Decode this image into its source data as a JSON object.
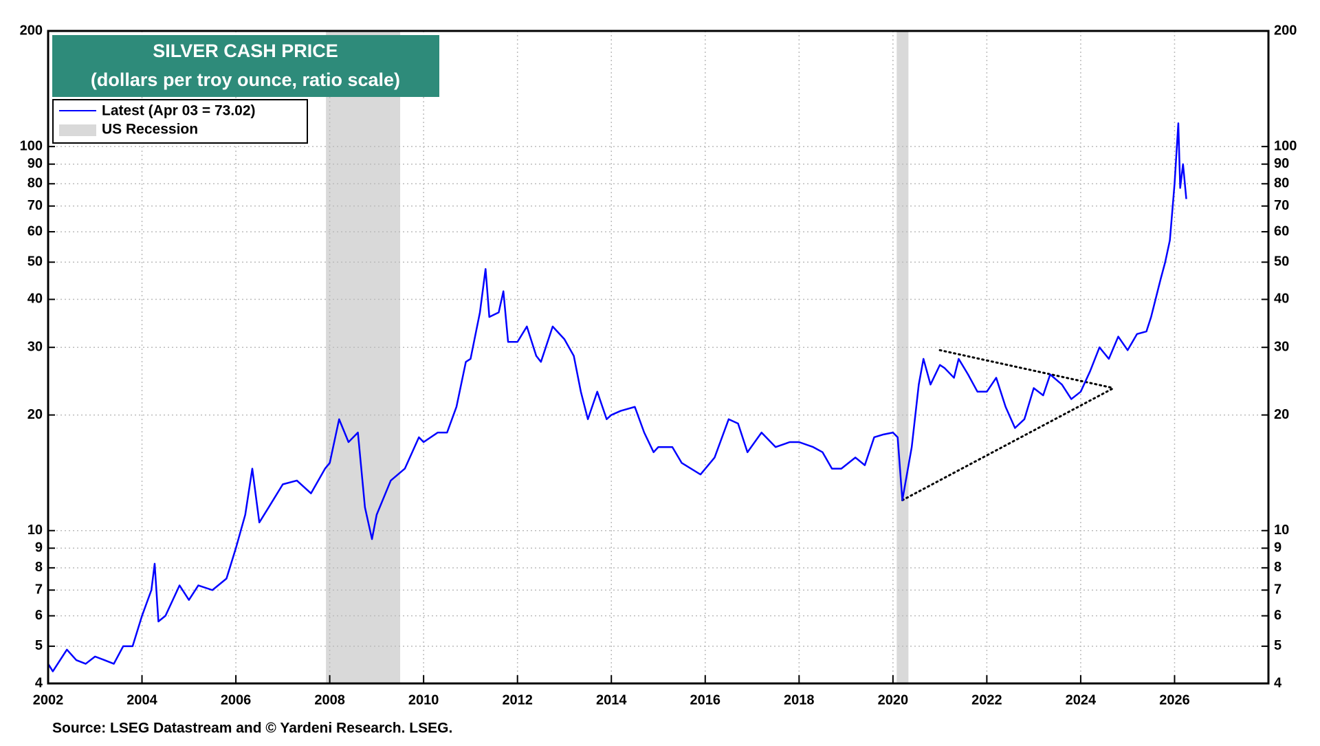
{
  "chart_data": {
    "type": "line",
    "title": "SILVER CASH PRICE",
    "subtitle": "(dollars per troy ounce, ratio scale)",
    "source": "Source: LSEG Datastream and © Yardeni Research. LSEG.",
    "log_scale": true,
    "grid": true,
    "legend_position": "upper-left",
    "xlim": [
      2002,
      2028
    ],
    "xticks": [
      2002,
      2004,
      2006,
      2008,
      2010,
      2012,
      2014,
      2016,
      2018,
      2020,
      2022,
      2024,
      2026
    ],
    "ylim": [
      4,
      200
    ],
    "yticks": [
      4,
      5,
      6,
      7,
      8,
      9,
      10,
      20,
      30,
      40,
      50,
      60,
      70,
      80,
      90,
      100,
      200
    ],
    "x": [
      2002.0,
      2002.1,
      2002.4,
      2002.6,
      2002.8,
      2003.0,
      2003.2,
      2003.4,
      2003.6,
      2003.8,
      2004.0,
      2004.2,
      2004.27,
      2004.35,
      2004.5,
      2004.8,
      2005.0,
      2005.2,
      2005.5,
      2005.8,
      2006.0,
      2006.2,
      2006.35,
      2006.5,
      2006.7,
      2007.0,
      2007.3,
      2007.6,
      2007.9,
      2008.0,
      2008.2,
      2008.4,
      2008.6,
      2008.75,
      2008.9,
      2009.0,
      2009.3,
      2009.6,
      2009.9,
      2010.0,
      2010.3,
      2010.5,
      2010.7,
      2010.9,
      2011.0,
      2011.2,
      2011.32,
      2011.4,
      2011.6,
      2011.7,
      2011.8,
      2012.0,
      2012.2,
      2012.4,
      2012.5,
      2012.75,
      2013.0,
      2013.2,
      2013.35,
      2013.5,
      2013.7,
      2013.9,
      2014.0,
      2014.2,
      2014.5,
      2014.7,
      2014.9,
      2015.0,
      2015.3,
      2015.5,
      2015.9,
      2016.2,
      2016.5,
      2016.7,
      2016.9,
      2017.2,
      2017.5,
      2017.8,
      2018.0,
      2018.3,
      2018.5,
      2018.7,
      2018.9,
      2019.2,
      2019.4,
      2019.6,
      2019.8,
      2020.0,
      2020.1,
      2020.2,
      2020.4,
      2020.55,
      2020.65,
      2020.8,
      2021.0,
      2021.1,
      2021.3,
      2021.4,
      2021.6,
      2021.8,
      2022.0,
      2022.2,
      2022.4,
      2022.6,
      2022.8,
      2023.0,
      2023.2,
      2023.35,
      2023.6,
      2023.8,
      2024.0,
      2024.2,
      2024.4,
      2024.6,
      2024.8,
      2025.0,
      2025.2,
      2025.4,
      2025.5,
      2025.7,
      2025.8,
      2025.9,
      2026.0,
      2026.08,
      2026.12,
      2026.18,
      2026.25
    ],
    "series": [
      {
        "name": "Latest (Apr 03 = 73.02)",
        "color": "#0000ff",
        "values": [
          4.5,
          4.3,
          4.9,
          4.6,
          4.5,
          4.7,
          4.6,
          4.5,
          5.0,
          5.0,
          6.0,
          7.0,
          8.2,
          5.8,
          6.0,
          7.2,
          6.6,
          7.2,
          7.0,
          7.5,
          9.0,
          11.0,
          14.5,
          10.5,
          11.5,
          13.2,
          13.5,
          12.5,
          14.5,
          15.0,
          19.5,
          17.0,
          18.0,
          11.5,
          9.5,
          11.0,
          13.5,
          14.5,
          17.5,
          17.0,
          18.0,
          18.0,
          21.0,
          27.5,
          28,
          37,
          48,
          36,
          37,
          42,
          31,
          31,
          34,
          28.5,
          27.5,
          34,
          31.5,
          28.5,
          23,
          19.5,
          23,
          19.5,
          20,
          20.5,
          21,
          18,
          16,
          16.5,
          16.5,
          15,
          14,
          15.5,
          19.5,
          19,
          16,
          18,
          16.5,
          17,
          17,
          16.5,
          16,
          14.5,
          14.5,
          15.5,
          14.8,
          17.5,
          17.8,
          18,
          17.5,
          12,
          16.5,
          24,
          28,
          24,
          27,
          26.5,
          25,
          28,
          25.5,
          23,
          23,
          25,
          21,
          18.5,
          19.5,
          23.5,
          22.5,
          25.5,
          24,
          22,
          23,
          26,
          30,
          28,
          32,
          29.5,
          32.5,
          33,
          36,
          45,
          50,
          57,
          80,
          115,
          78,
          90,
          73.02
        ]
      }
    ],
    "recessions": {
      "name": "US Recession",
      "color": "#d9d9d9",
      "ranges": [
        [
          2007.92,
          2009.5
        ],
        [
          2020.08,
          2020.33
        ]
      ]
    },
    "trend_lines": [
      {
        "x": [
          2020.2,
          2024.7
        ],
        "y": [
          12,
          23.5
        ]
      },
      {
        "x": [
          2021.0,
          2024.7
        ],
        "y": [
          29.5,
          23.5
        ]
      }
    ]
  }
}
